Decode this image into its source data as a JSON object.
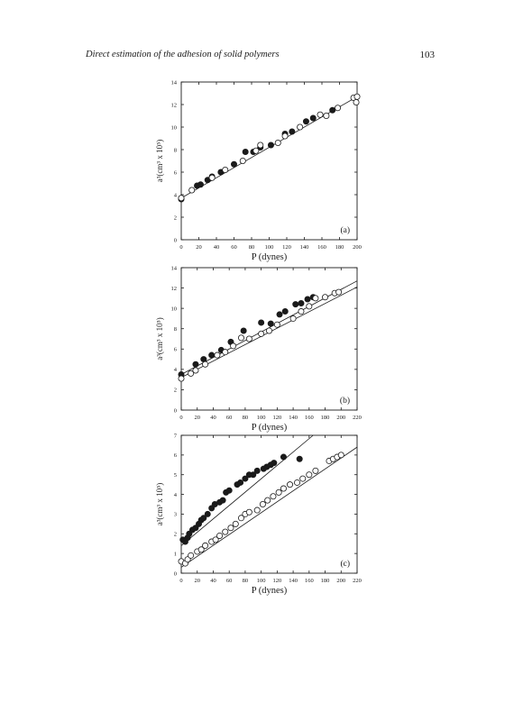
{
  "header": {
    "running_title": "Direct estimation of the adhesion of solid polymers",
    "page_number": "103"
  },
  "chart_data": [
    {
      "type": "scatter",
      "panel_label": "(a)",
      "xlabel": "P (dynes)",
      "ylabel": "a³(cm³ x 10⁵)",
      "xlim": [
        0,
        200
      ],
      "ylim": [
        0,
        14
      ],
      "xticks": [
        "0",
        "20",
        "40",
        "60",
        "80",
        "100",
        "120",
        "140",
        "160",
        "180",
        "200"
      ],
      "yticks": [
        "0",
        "2",
        "4",
        "6",
        "8",
        "10",
        "12",
        "14"
      ],
      "grid": false,
      "series": [
        {
          "marker": "filled",
          "x": [
            0,
            18,
            22,
            30,
            35,
            45,
            60,
            73,
            82,
            90,
            102,
            118,
            126,
            142,
            150,
            172
          ],
          "y": [
            3.6,
            4.8,
            4.9,
            5.3,
            5.6,
            6.0,
            6.7,
            7.8,
            7.8,
            8.2,
            8.4,
            9.4,
            9.6,
            10.5,
            10.8,
            11.5
          ]
        },
        {
          "marker": "open",
          "x": [
            0,
            12,
            35,
            50,
            70,
            85,
            90,
            110,
            118,
            135,
            158,
            165,
            178,
            196,
            200,
            199
          ],
          "y": [
            3.7,
            4.4,
            5.5,
            6.2,
            7.0,
            7.9,
            8.4,
            8.6,
            9.2,
            10.0,
            11.1,
            11.0,
            11.7,
            12.6,
            12.7,
            12.2
          ]
        }
      ],
      "fit_lines": [
        {
          "x": [
            0,
            200
          ],
          "y": [
            3.7,
            12.7
          ]
        }
      ]
    },
    {
      "type": "scatter",
      "panel_label": "(b)",
      "xlabel": "P (dynes)",
      "ylabel": "a³(cm³ x 10⁵)",
      "xlim": [
        0,
        220
      ],
      "ylim": [
        0,
        14
      ],
      "xticks": [
        "0",
        "20",
        "40",
        "60",
        "80",
        "100",
        "120",
        "140",
        "160",
        "180",
        "200",
        "220"
      ],
      "yticks": [
        "0",
        "2",
        "4",
        "6",
        "8",
        "10",
        "12",
        "14"
      ],
      "grid": false,
      "series": [
        {
          "marker": "filled",
          "x": [
            0,
            18,
            28,
            38,
            50,
            62,
            78,
            100,
            112,
            123,
            130,
            143,
            150,
            158,
            165
          ],
          "y": [
            3.5,
            4.5,
            5.0,
            5.4,
            5.9,
            6.7,
            7.8,
            8.6,
            8.5,
            9.4,
            9.7,
            10.4,
            10.5,
            10.9,
            11.1
          ]
        },
        {
          "marker": "open",
          "x": [
            0,
            12,
            18,
            30,
            45,
            55,
            65,
            75,
            85,
            100,
            110,
            120,
            140,
            150,
            160,
            168,
            180,
            192,
            197
          ],
          "y": [
            3.1,
            3.6,
            3.9,
            4.5,
            5.4,
            5.7,
            6.3,
            7.1,
            7.0,
            7.5,
            7.8,
            8.4,
            9.0,
            9.7,
            10.2,
            11.0,
            11.1,
            11.5,
            11.6
          ]
        }
      ],
      "fit_lines": [
        {
          "x": [
            0,
            220
          ],
          "y": [
            3.5,
            12.7
          ]
        },
        {
          "x": [
            0,
            220
          ],
          "y": [
            3.2,
            12.1
          ]
        }
      ]
    },
    {
      "type": "scatter",
      "panel_label": "(c)",
      "xlabel": "P (dynes)",
      "ylabel": "a³(cm³ x 10⁵)",
      "xlim": [
        0,
        220
      ],
      "ylim": [
        0,
        7
      ],
      "xticks": [
        "0",
        "20",
        "40",
        "60",
        "80",
        "100",
        "120",
        "140",
        "160",
        "180",
        "200",
        "220"
      ],
      "yticks": [
        "0",
        "1",
        "2",
        "3",
        "4",
        "5",
        "6",
        "7"
      ],
      "grid": false,
      "series": [
        {
          "marker": "filled",
          "x": [
            2,
            5,
            8,
            10,
            14,
            18,
            22,
            25,
            28,
            33,
            38,
            42,
            48,
            52,
            56,
            60,
            70,
            74,
            80,
            85,
            90,
            95,
            103,
            107,
            112,
            116,
            128,
            148
          ],
          "y": [
            1.7,
            1.6,
            1.8,
            2.0,
            2.2,
            2.3,
            2.5,
            2.7,
            2.8,
            3.0,
            3.3,
            3.5,
            3.6,
            3.7,
            4.1,
            4.2,
            4.5,
            4.6,
            4.8,
            5.0,
            5.0,
            5.2,
            5.3,
            5.4,
            5.5,
            5.6,
            5.9,
            5.8
          ]
        },
        {
          "marker": "open",
          "x": [
            0,
            5,
            8,
            12,
            20,
            25,
            30,
            38,
            43,
            48,
            55,
            62,
            68,
            75,
            80,
            85,
            95,
            102,
            108,
            115,
            122,
            128,
            136,
            145,
            152,
            160,
            168,
            185,
            190,
            195,
            200
          ],
          "y": [
            0.6,
            0.5,
            0.7,
            0.9,
            1.1,
            1.2,
            1.4,
            1.6,
            1.7,
            1.9,
            2.1,
            2.3,
            2.5,
            2.8,
            3.0,
            3.1,
            3.2,
            3.5,
            3.7,
            3.9,
            4.1,
            4.3,
            4.5,
            4.6,
            4.8,
            5.0,
            5.2,
            5.7,
            5.8,
            5.9,
            6.0
          ]
        }
      ],
      "fit_lines": [
        {
          "x": [
            0,
            165
          ],
          "y": [
            1.4,
            7.0
          ]
        },
        {
          "x": [
            0,
            220
          ],
          "y": [
            0.3,
            6.4
          ]
        }
      ]
    }
  ]
}
